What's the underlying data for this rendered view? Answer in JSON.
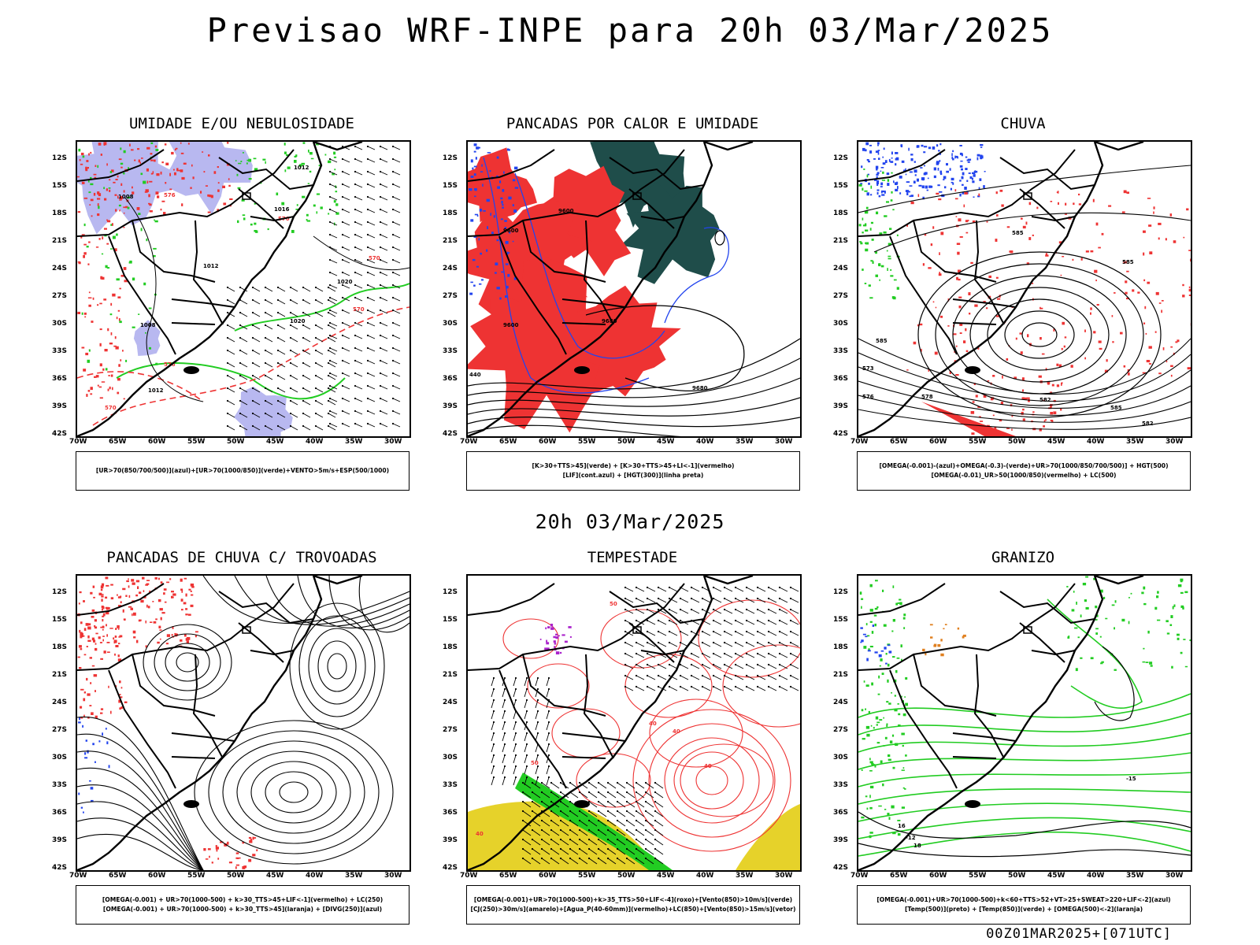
{
  "title": "Previsao WRF-INPE  para 20h 03/Mar/2025",
  "subtitle": "20h 03/Mar/2025",
  "footer": "00Z01MAR2025+[071UTC]",
  "axes": {
    "lat_labels": [
      "12S",
      "15S",
      "18S",
      "21S",
      "24S",
      "27S",
      "30S",
      "33S",
      "36S",
      "39S",
      "42S"
    ],
    "lon_labels": [
      "70W",
      "65W",
      "60W",
      "55W",
      "50W",
      "45W",
      "40W",
      "35W",
      "30W"
    ]
  },
  "panels": [
    {
      "title": "UMIDADE E/OU NEBULOSIDADE",
      "legend": [
        "[UR>70(850/700/500)](azul)+[UR>70(1000/850)](verde)+VENTO>5m/s+ESP(500/1000)"
      ],
      "contour_labels": [
        "1008",
        "1012",
        "1016",
        "1020",
        "576",
        "570"
      ]
    },
    {
      "title": "PANCADAS POR CALOR E UMIDADE",
      "legend": [
        "[K>30+TTS>45](verde) + [K>30+TTS>45+LI<-1](vermelho)",
        "[LIF](cont.azul) + [HGT(300)](linha preta)"
      ],
      "contour_labels": [
        "9600",
        "9680",
        "440"
      ]
    },
    {
      "title": "CHUVA",
      "legend": [
        "[OMEGA(-0.001)-(azul)+OMEGA(-0.3)-(verde)+UR>70(1000/850/700/500)] + HGT(500)",
        "[OMEGA(-0.01)_UR>50(1000/850)(vermelho) + LC(500)"
      ],
      "contour_labels": [
        "585",
        "582",
        "576",
        "573"
      ]
    },
    {
      "title": "PANCADAS DE CHUVA C/ TROVOADAS",
      "legend": [
        "[OMEGA(-0.001) + UR>70(1000-500) + k>30_TTS>45+LIF<-1](vermelho) + LC(250)",
        "[OMEGA(-0.001) + UR>70(1000-500) + k>30_TTS>45](laranja) + [DIVG(250)](azul)"
      ],
      "contour_labels": []
    },
    {
      "title": "TEMPESTADE",
      "legend": [
        "[OMEGA(-0.001)+UR>70(1000-500)+k>35_TTS>50+LIF<-4](roxo)+[Vento(850)>10m/s](verde)",
        "[CJ(250)>30m/s](amarelo)+[Agua_P(40-60mm)](vermelho)+LC(850)+[Vento(850)>15m/s](vetor)"
      ],
      "contour_labels": [
        "40",
        "50"
      ]
    },
    {
      "title": "GRANIZO",
      "legend": [
        "[OMEGA(-0.001)+UR>70(1000-500)+k<60+TTS>52+VT>25+SWEAT>220+LIF<-2](azul)",
        "[Temp(500)](preto) + [Temp(850)](verde) + [OMEGA(500)<-2](laranja)"
      ],
      "contour_labels": [
        "-12",
        "-15",
        "16",
        "18"
      ]
    }
  ],
  "colors": {
    "coast": "#000000",
    "humidity_blue": "#b8b8f0",
    "green": "#22cc22",
    "red": "#ee3333",
    "blue": "#2244ee",
    "dark_teal": "#1f4d4a",
    "yellow": "#e6d22a",
    "orange": "#e08020",
    "purple": "#aa22cc"
  }
}
